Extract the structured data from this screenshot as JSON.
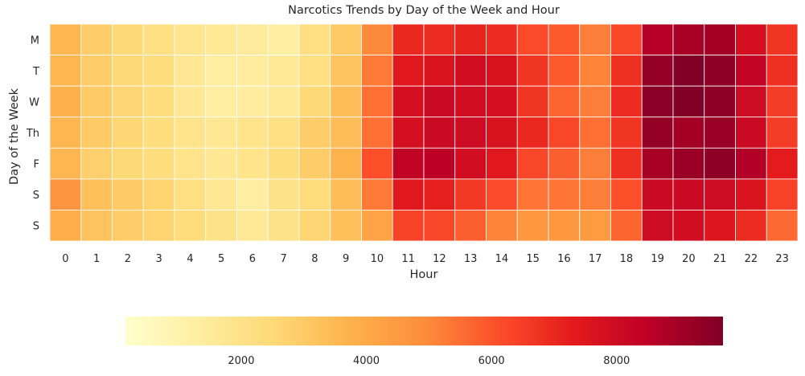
{
  "chart_data": {
    "type": "heatmap",
    "title": "Narcotics Trends by Day of the Week and Hour",
    "xlabel": "Hour",
    "ylabel": "Day of the Week",
    "x": [
      "0",
      "1",
      "2",
      "3",
      "4",
      "5",
      "6",
      "7",
      "8",
      "9",
      "10",
      "11",
      "12",
      "13",
      "14",
      "15",
      "16",
      "17",
      "18",
      "19",
      "20",
      "21",
      "22",
      "23"
    ],
    "y": [
      "M",
      "T",
      "W",
      "Th",
      "F",
      "S",
      "S"
    ],
    "values": [
      [
        3600,
        2900,
        2500,
        2200,
        1800,
        1600,
        1500,
        1300,
        2200,
        3000,
        5000,
        7000,
        6900,
        7100,
        6900,
        6200,
        5900,
        5200,
        6300,
        8600,
        8900,
        9000,
        7800,
        6700
      ],
      [
        3600,
        2900,
        2500,
        2300,
        1700,
        1300,
        1400,
        1600,
        2200,
        3200,
        5300,
        7400,
        7600,
        7900,
        7700,
        6700,
        5900,
        5100,
        6800,
        9300,
        9700,
        9400,
        8300,
        6800
      ],
      [
        3800,
        3000,
        2600,
        2300,
        1700,
        1300,
        1400,
        1600,
        2500,
        3400,
        5500,
        7800,
        8100,
        7900,
        7800,
        6700,
        5700,
        5200,
        6900,
        9500,
        9700,
        9400,
        8000,
        6500
      ],
      [
        3600,
        3000,
        2600,
        2300,
        1900,
        1700,
        1900,
        2200,
        2900,
        3400,
        5500,
        7800,
        8100,
        8000,
        7700,
        7000,
        6300,
        5500,
        6700,
        9300,
        9000,
        9200,
        8100,
        6500
      ],
      [
        3600,
        2800,
        2500,
        2300,
        1900,
        1700,
        1900,
        2300,
        2900,
        3700,
        6100,
        8400,
        8500,
        7900,
        7400,
        6300,
        5800,
        5200,
        6800,
        8900,
        9200,
        9400,
        8700,
        7300
      ],
      [
        4700,
        3300,
        3000,
        2700,
        2200,
        1700,
        1300,
        2000,
        2400,
        3400,
        5300,
        7400,
        7200,
        6600,
        6200,
        5400,
        5400,
        5200,
        6100,
        8100,
        8100,
        8000,
        7600,
        6400
      ],
      [
        3900,
        3200,
        2900,
        2700,
        2400,
        2000,
        1600,
        2000,
        2600,
        3300,
        4200,
        6400,
        6300,
        5800,
        5100,
        4600,
        4600,
        4500,
        5700,
        8000,
        7900,
        7500,
        6900,
        5600
      ]
    ],
    "colorbar": {
      "ticks": [
        2000,
        4000,
        6000,
        8000
      ],
      "min": 150,
      "max": 9700,
      "orientation": "horizontal"
    },
    "colormap": "YlOrRd",
    "colors": [
      "#ffffcc",
      "#ffeda0",
      "#fed976",
      "#feb24c",
      "#fd8d3c",
      "#fc4e2a",
      "#e31a1c",
      "#bd0026",
      "#800026"
    ]
  }
}
